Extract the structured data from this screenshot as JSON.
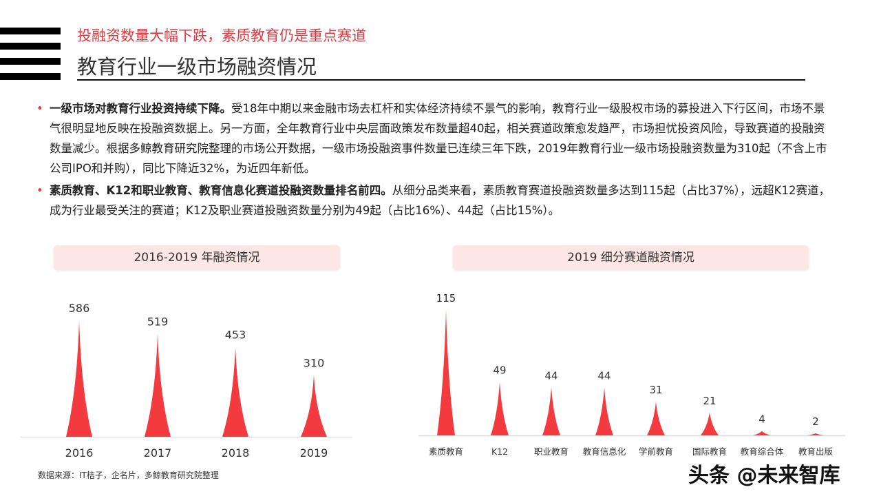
{
  "header": {
    "subtitle": "投融资数量大幅下跌，素质教育仍是重点赛道",
    "title": "教育行业一级市场融资情况"
  },
  "bullets": [
    {
      "bold": "一级市场对教育行业投资持续下降。",
      "text": "受18年中期以来金融市场去杠杆和实体经济持续不景气的影响，教育行业一级股权市场的募投进入下行区间，市场不景气很明显地反映在投融资数据上。另一方面，全年教育行业中央层面政策发布数量超40起，相关赛道政策愈发趋严，市场担忧投资风险，导致赛道的投融资数量减少。根据多鲸教育研究院整理的市场公开数据，一级市场投融资事件数量已连续三年下跌，2019年教育行业一级市场投融资数量为310起（不含上市公司IPO和并购），同比下降近32%，为近四年新低。"
    },
    {
      "bold": "素质教育、K12和职业教育、教育信息化赛道投融资数量排名前四。",
      "text": "从细分品类来看，素质教育赛道投融资数量多达到115起（占比37%），远超K12赛道，成为行业最受关注的赛道；K12及职业赛道投融资数量分别为49起（占比16%）、44起（占比15%）。"
    }
  ],
  "chart_data": [
    {
      "type": "bar",
      "title": "2016-2019 年融资情况",
      "categories": [
        "2016",
        "2017",
        "2018",
        "2019"
      ],
      "values": [
        586,
        519,
        453,
        310
      ],
      "color": "#f23a3f"
    },
    {
      "type": "bar",
      "title": "2019 细分赛道融资情况",
      "categories": [
        "素质教育",
        "K12",
        "职业教育",
        "教育信息化",
        "学前教育",
        "国际教育",
        "教育综合体",
        "教育出版"
      ],
      "values": [
        115,
        49,
        44,
        44,
        31,
        21,
        4,
        2
      ],
      "color": "#f23a3f"
    }
  ],
  "source": "数据来源：IT桔子，企名片，多鲸教育研究院整理",
  "watermark": "头条 @未来智库"
}
